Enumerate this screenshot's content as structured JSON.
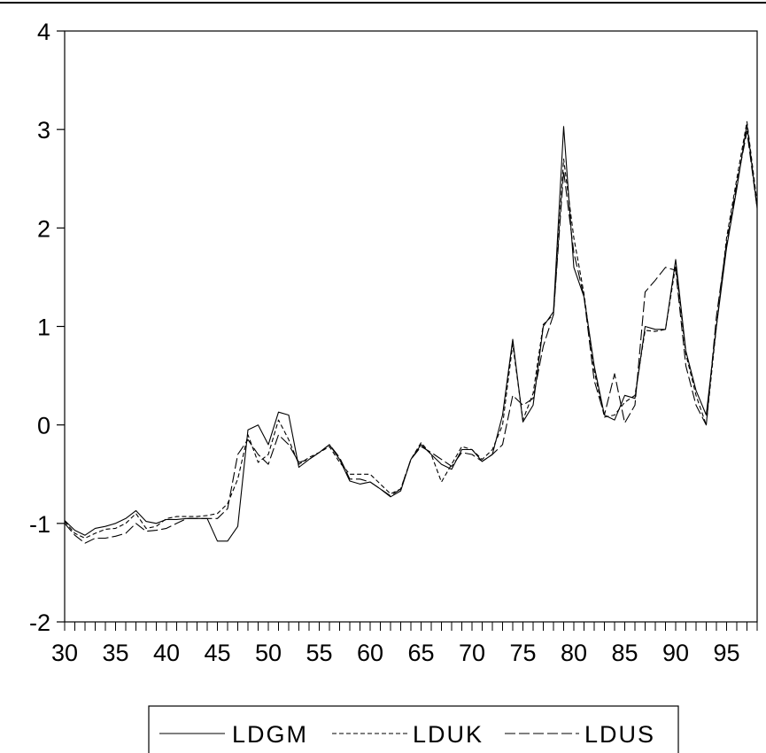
{
  "chart_data": {
    "type": "line",
    "title": "",
    "xlabel": "",
    "ylabel": "",
    "xlim": [
      30,
      98
    ],
    "ylim": [
      -2,
      4
    ],
    "x_ticks": [
      "30",
      "35",
      "40",
      "45",
      "50",
      "55",
      "60",
      "65",
      "70",
      "75",
      "80",
      "85",
      "90",
      "95"
    ],
    "y_ticks": [
      "4",
      "3",
      "2",
      "1",
      "0",
      "-1",
      "-2"
    ],
    "grid": false,
    "legend_position": "bottom",
    "x": [
      30,
      31,
      32,
      33,
      34,
      35,
      36,
      37,
      38,
      39,
      40,
      41,
      42,
      43,
      44,
      45,
      46,
      47,
      48,
      49,
      50,
      51,
      52,
      53,
      54,
      55,
      56,
      57,
      58,
      59,
      60,
      61,
      62,
      63,
      64,
      65,
      66,
      67,
      68,
      69,
      70,
      71,
      72,
      73,
      74,
      75,
      76,
      77,
      78,
      79,
      80,
      81,
      82,
      83,
      84,
      85,
      86,
      87,
      88,
      89,
      90,
      91,
      92,
      93,
      94,
      95,
      96,
      97,
      98
    ],
    "series": [
      {
        "name": "LDGM",
        "style": "solid",
        "values": [
          -0.97,
          -1.07,
          -1.12,
          -1.05,
          -1.03,
          -1.0,
          -0.95,
          -0.87,
          -0.98,
          -1.0,
          -0.96,
          -0.96,
          -0.95,
          -0.95,
          -0.95,
          -1.18,
          -1.18,
          -1.03,
          -0.05,
          0.0,
          -0.2,
          0.13,
          0.1,
          -0.43,
          -0.35,
          -0.28,
          -0.2,
          -0.35,
          -0.57,
          -0.6,
          -0.58,
          -0.65,
          -0.73,
          -0.67,
          -0.35,
          -0.2,
          -0.3,
          -0.4,
          -0.45,
          -0.25,
          -0.25,
          -0.37,
          -0.3,
          0.1,
          0.87,
          0.03,
          0.2,
          1.0,
          1.15,
          3.03,
          1.6,
          1.3,
          0.6,
          0.1,
          0.05,
          0.3,
          0.27,
          1.0,
          0.97,
          0.97,
          1.68,
          0.75,
          0.35,
          0.1,
          1.0,
          1.8,
          2.4,
          3.05,
          2.2
        ]
      },
      {
        "name": "LDUK",
        "style": "dashed",
        "values": [
          -0.98,
          -1.1,
          -1.15,
          -1.1,
          -1.06,
          -1.05,
          -1.0,
          -0.9,
          -1.05,
          -1.03,
          -0.95,
          -0.93,
          -0.93,
          -0.93,
          -0.92,
          -0.9,
          -0.8,
          -0.55,
          -0.1,
          -0.38,
          -0.3,
          0.05,
          -0.15,
          -0.4,
          -0.33,
          -0.28,
          -0.22,
          -0.38,
          -0.5,
          -0.5,
          -0.5,
          -0.6,
          -0.7,
          -0.65,
          -0.35,
          -0.18,
          -0.3,
          -0.58,
          -0.4,
          -0.22,
          -0.25,
          -0.35,
          -0.25,
          0.0,
          0.82,
          0.05,
          0.32,
          1.02,
          1.12,
          2.7,
          1.9,
          1.33,
          0.55,
          0.08,
          0.1,
          0.23,
          0.3,
          0.96,
          0.95,
          0.97,
          1.62,
          0.72,
          0.3,
          0.0,
          1.0,
          1.9,
          2.5,
          3.08,
          2.25
        ]
      },
      {
        "name": "LDUS",
        "style": "longdash",
        "values": [
          -1.0,
          -1.12,
          -1.2,
          -1.15,
          -1.15,
          -1.13,
          -1.1,
          -1.0,
          -1.08,
          -1.07,
          -1.05,
          -1.0,
          -0.95,
          -0.95,
          -0.95,
          -0.95,
          -0.85,
          -0.3,
          -0.15,
          -0.3,
          -0.4,
          -0.1,
          -0.2,
          -0.38,
          -0.35,
          -0.28,
          -0.2,
          -0.33,
          -0.55,
          -0.55,
          -0.58,
          -0.65,
          -0.72,
          -0.65,
          -0.35,
          -0.22,
          -0.28,
          -0.35,
          -0.42,
          -0.28,
          -0.3,
          -0.37,
          -0.3,
          -0.2,
          0.3,
          0.2,
          0.27,
          0.8,
          1.12,
          2.58,
          1.75,
          1.3,
          0.45,
          0.1,
          0.52,
          0.02,
          0.2,
          1.35,
          1.47,
          1.6,
          1.57,
          0.6,
          0.2,
          0.0,
          1.1,
          1.85,
          2.45,
          2.98,
          2.2
        ]
      }
    ]
  }
}
